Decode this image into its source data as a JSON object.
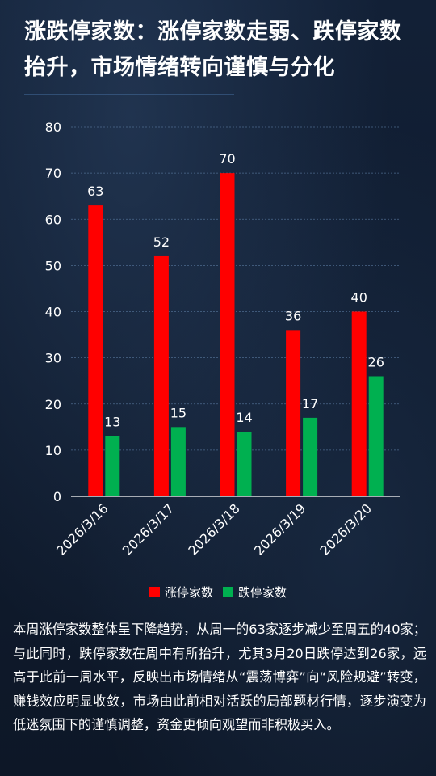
{
  "title": "涨跌停家数：涨停家数走弱、跌停家数抬升，市场情绪转向谨慎与分化",
  "colors": {
    "up": "#ff0000",
    "down": "#00b050",
    "background": "#0f1a2b",
    "grid": "#5a7aa0"
  },
  "chart_data": {
    "type": "bar",
    "categories": [
      "2026/3/16",
      "2026/3/17",
      "2026/3/18",
      "2026/3/19",
      "2026/3/20"
    ],
    "series": [
      {
        "name": "涨停家数",
        "values": [
          63,
          52,
          70,
          36,
          40
        ],
        "color": "#ff0000"
      },
      {
        "name": "跌停家数",
        "values": [
          13,
          15,
          14,
          17,
          26
        ],
        "color": "#00b050"
      }
    ],
    "ylim": [
      0,
      80
    ],
    "yticks": [
      0,
      10,
      20,
      30,
      40,
      50,
      60,
      70,
      80
    ],
    "grid": true,
    "legend_position": "bottom",
    "xlabel": "",
    "ylabel": ""
  },
  "legend": {
    "up_label": "涨停家数",
    "down_label": "跌停家数"
  },
  "description": "本周涨停家数整体呈下降趋势，从周一的63家逐步减少至周五的40家；与此同时，跌停家数在周中有所抬升，尤其3月20日跌停达到26家，远高于此前一周水平，反映出市场情绪从“震荡博弈”向“风险规避”转变，赚钱效应明显收敛，市场由此前相对活跃的局部题材行情，逐步演变为低迷氛围下的谨慎调整，资金更倾向观望而非积极买入。"
}
